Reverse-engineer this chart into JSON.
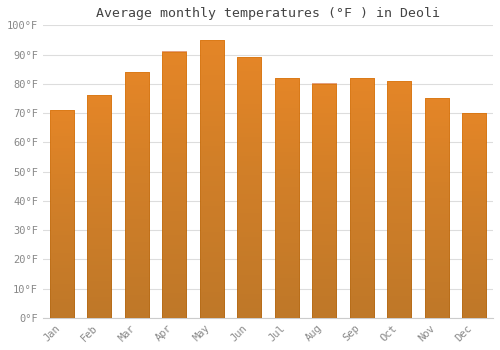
{
  "title": "Average monthly temperatures (°F ) in Deoli",
  "months": [
    "Jan",
    "Feb",
    "Mar",
    "Apr",
    "May",
    "Jun",
    "Jul",
    "Aug",
    "Sep",
    "Oct",
    "Nov",
    "Dec"
  ],
  "values": [
    71,
    76,
    84,
    91,
    95,
    89,
    82,
    80,
    82,
    81,
    75,
    70
  ],
  "bar_color_bottom": "#FFC94D",
  "bar_color_top": "#FFA500",
  "bar_edge_color": "#E8A000",
  "background_color": "#ffffff",
  "grid_color": "#dddddd",
  "ylim": [
    0,
    100
  ],
  "yticks": [
    0,
    10,
    20,
    30,
    40,
    50,
    60,
    70,
    80,
    90,
    100
  ],
  "title_fontsize": 9.5,
  "tick_fontsize": 7.5,
  "tick_color": "#888888",
  "title_color": "#444444",
  "bar_width": 0.65
}
